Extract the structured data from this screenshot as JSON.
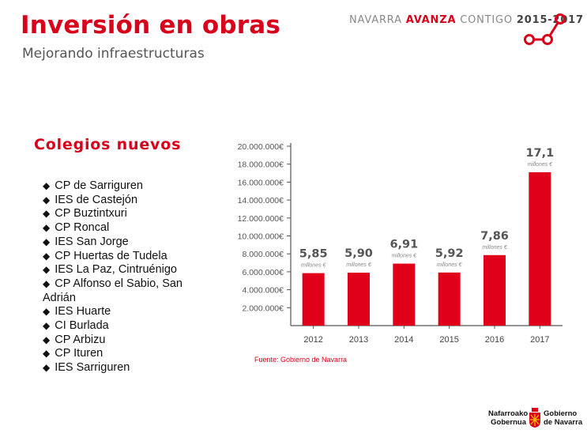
{
  "header": {
    "title": "Inversión en obras",
    "subtitle": "Mejorando infraestructuras",
    "brand_part1": "NAVARRA ",
    "brand_part2": "AVANZA",
    "brand_part3": " CONTIGO ",
    "brand_years": "2015-2017",
    "accent_color": "#d9001b"
  },
  "section": {
    "title": "Colegios nuevos",
    "items": [
      "CP de Sarriguren",
      "IES de Castejón",
      "CP Buztintxuri",
      "CP Roncal",
      "IES San Jorge",
      "CP Huertas de Tudela",
      "IES  La Paz, Cintruénigo",
      "CP Alfonso el Sabio, San Adrián",
      "IES Huarte",
      "CI Burlada",
      "CP Arbizu",
      "CP Ituren",
      "IES Sarriguren"
    ]
  },
  "chart_data": {
    "type": "bar",
    "categories": [
      "2012",
      "2013",
      "2014",
      "2015",
      "2016",
      "2017"
    ],
    "values": [
      5850000,
      5900000,
      6910000,
      5920000,
      7860000,
      17100000
    ],
    "value_labels": [
      "5,85",
      "5,90",
      "6,91",
      "5,92",
      "7,86",
      "17,1"
    ],
    "value_unit": "millones €",
    "y_ticks": [
      "2.000.000€",
      "4.000.000€",
      "6.000.000€",
      "8.000.000€",
      "10.000.000€",
      "12.000.000€",
      "14.000.000€",
      "16.000.000€",
      "18.000.000€",
      "20.000.000€"
    ],
    "ylim": [
      0,
      20000000
    ],
    "bar_color": "#e1001a",
    "grid": false
  },
  "source": "Fuente: Gobierno de Navarra",
  "footer": {
    "left_line1": "Nafarroako",
    "left_line2": "Gobernua",
    "right_line1": "Gobierno",
    "right_line2": "de Navarra"
  }
}
